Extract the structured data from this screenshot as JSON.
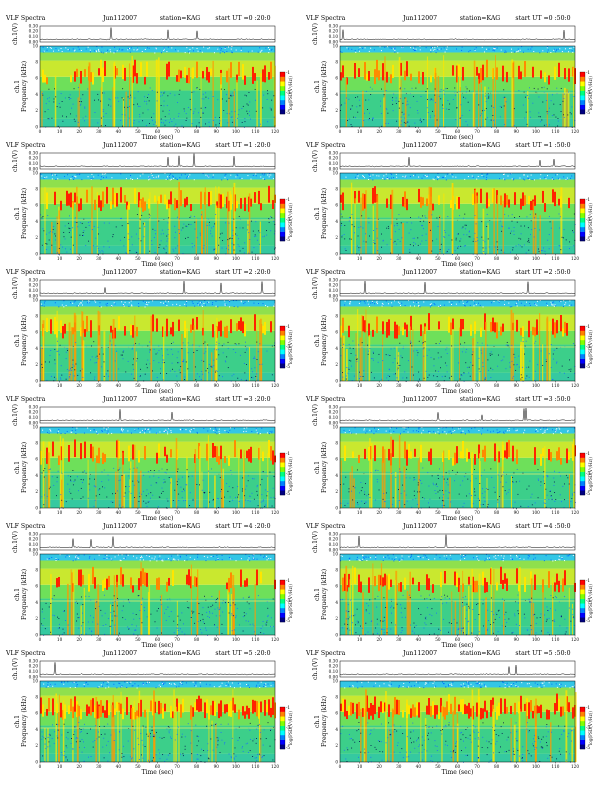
{
  "colors": {
    "scale": [
      "#00007f",
      "#0000ff",
      "#0080ff",
      "#00ffff",
      "#00ff80",
      "#80ff00",
      "#ffff00",
      "#ff8000",
      "#ff0000"
    ],
    "noise_green": "#2fd07a",
    "trace": "#000000"
  },
  "labels": {
    "top_ylabel": "ch.1(V)",
    "spec_ylabel_1": "ch.1",
    "spec_ylabel_2": "Frequency (kHz)",
    "xlabel": "Time (sec)",
    "cbar_label": "log(PSD(V²/Hz))",
    "cbar_ticks": [
      "-1",
      "-3",
      "-5"
    ],
    "x_ticks": [
      "0",
      "10",
      "20",
      "30",
      "40",
      "50",
      "60",
      "70",
      "80",
      "90",
      "100",
      "110",
      "120"
    ],
    "y_ticks": [
      "0",
      "2",
      "4",
      "6",
      "8",
      "10"
    ],
    "top_ticks": [
      "0.00",
      "0.10",
      "0.20",
      "0.30"
    ]
  },
  "panels": [
    {
      "title": "VLF Spectra",
      "date": "Jun112007",
      "station": "station=KAG",
      "start": "start UT =0 :20:0"
    },
    {
      "title": "VLF Spectra",
      "date": "Jun112007",
      "station": "station=KAG",
      "start": "start UT =0 :50:0"
    },
    {
      "title": "VLF Spectra",
      "date": "Jun112007",
      "station": "station=KAG",
      "start": "start UT =1 :20:0"
    },
    {
      "title": "VLF Spectra",
      "date": "Jun112007",
      "station": "station=KAG",
      "start": "start UT =1 :50:0"
    },
    {
      "title": "VLF Spectra",
      "date": "Jun112007",
      "station": "station=KAG",
      "start": "start UT =2 :20:0"
    },
    {
      "title": "VLF Spectra",
      "date": "Jun112007",
      "station": "station=KAG",
      "start": "start UT =2 :50:0"
    },
    {
      "title": "VLF Spectra",
      "date": "Jun112007",
      "station": "station=KAG",
      "start": "start UT =3 :20:0"
    },
    {
      "title": "VLF Spectra",
      "date": "Jun112007",
      "station": "station=KAG",
      "start": "start UT =3 :50:0"
    },
    {
      "title": "VLF Spectra",
      "date": "Jun112007",
      "station": "station=KAG",
      "start": "start UT =4 :20:0"
    },
    {
      "title": "VLF Spectra",
      "date": "Jun112007",
      "station": "station=KAG",
      "start": "start UT =4 :50:0"
    },
    {
      "title": "VLF Spectra",
      "date": "Jun112007",
      "station": "station=KAG",
      "start": "start UT =5 :20:0"
    },
    {
      "title": "VLF Spectra",
      "date": "Jun112007",
      "station": "station=KAG",
      "start": "start UT =5 :50:0"
    }
  ],
  "chart_data": {
    "type": "heatmap",
    "layout": "6 rows x 2 columns of spectrogram panels",
    "x_range_sec": [
      0,
      120
    ],
    "y_range_khz": [
      0,
      10
    ],
    "top_trace_range_v": [
      0.0,
      0.3
    ],
    "cbar_range": [
      -5,
      -1
    ],
    "description_of_values": "Broadband sferic spikes (vertical streaks) with most intense power near 5–8 kHz; horizontal line near 4 kHz in several panels"
  }
}
